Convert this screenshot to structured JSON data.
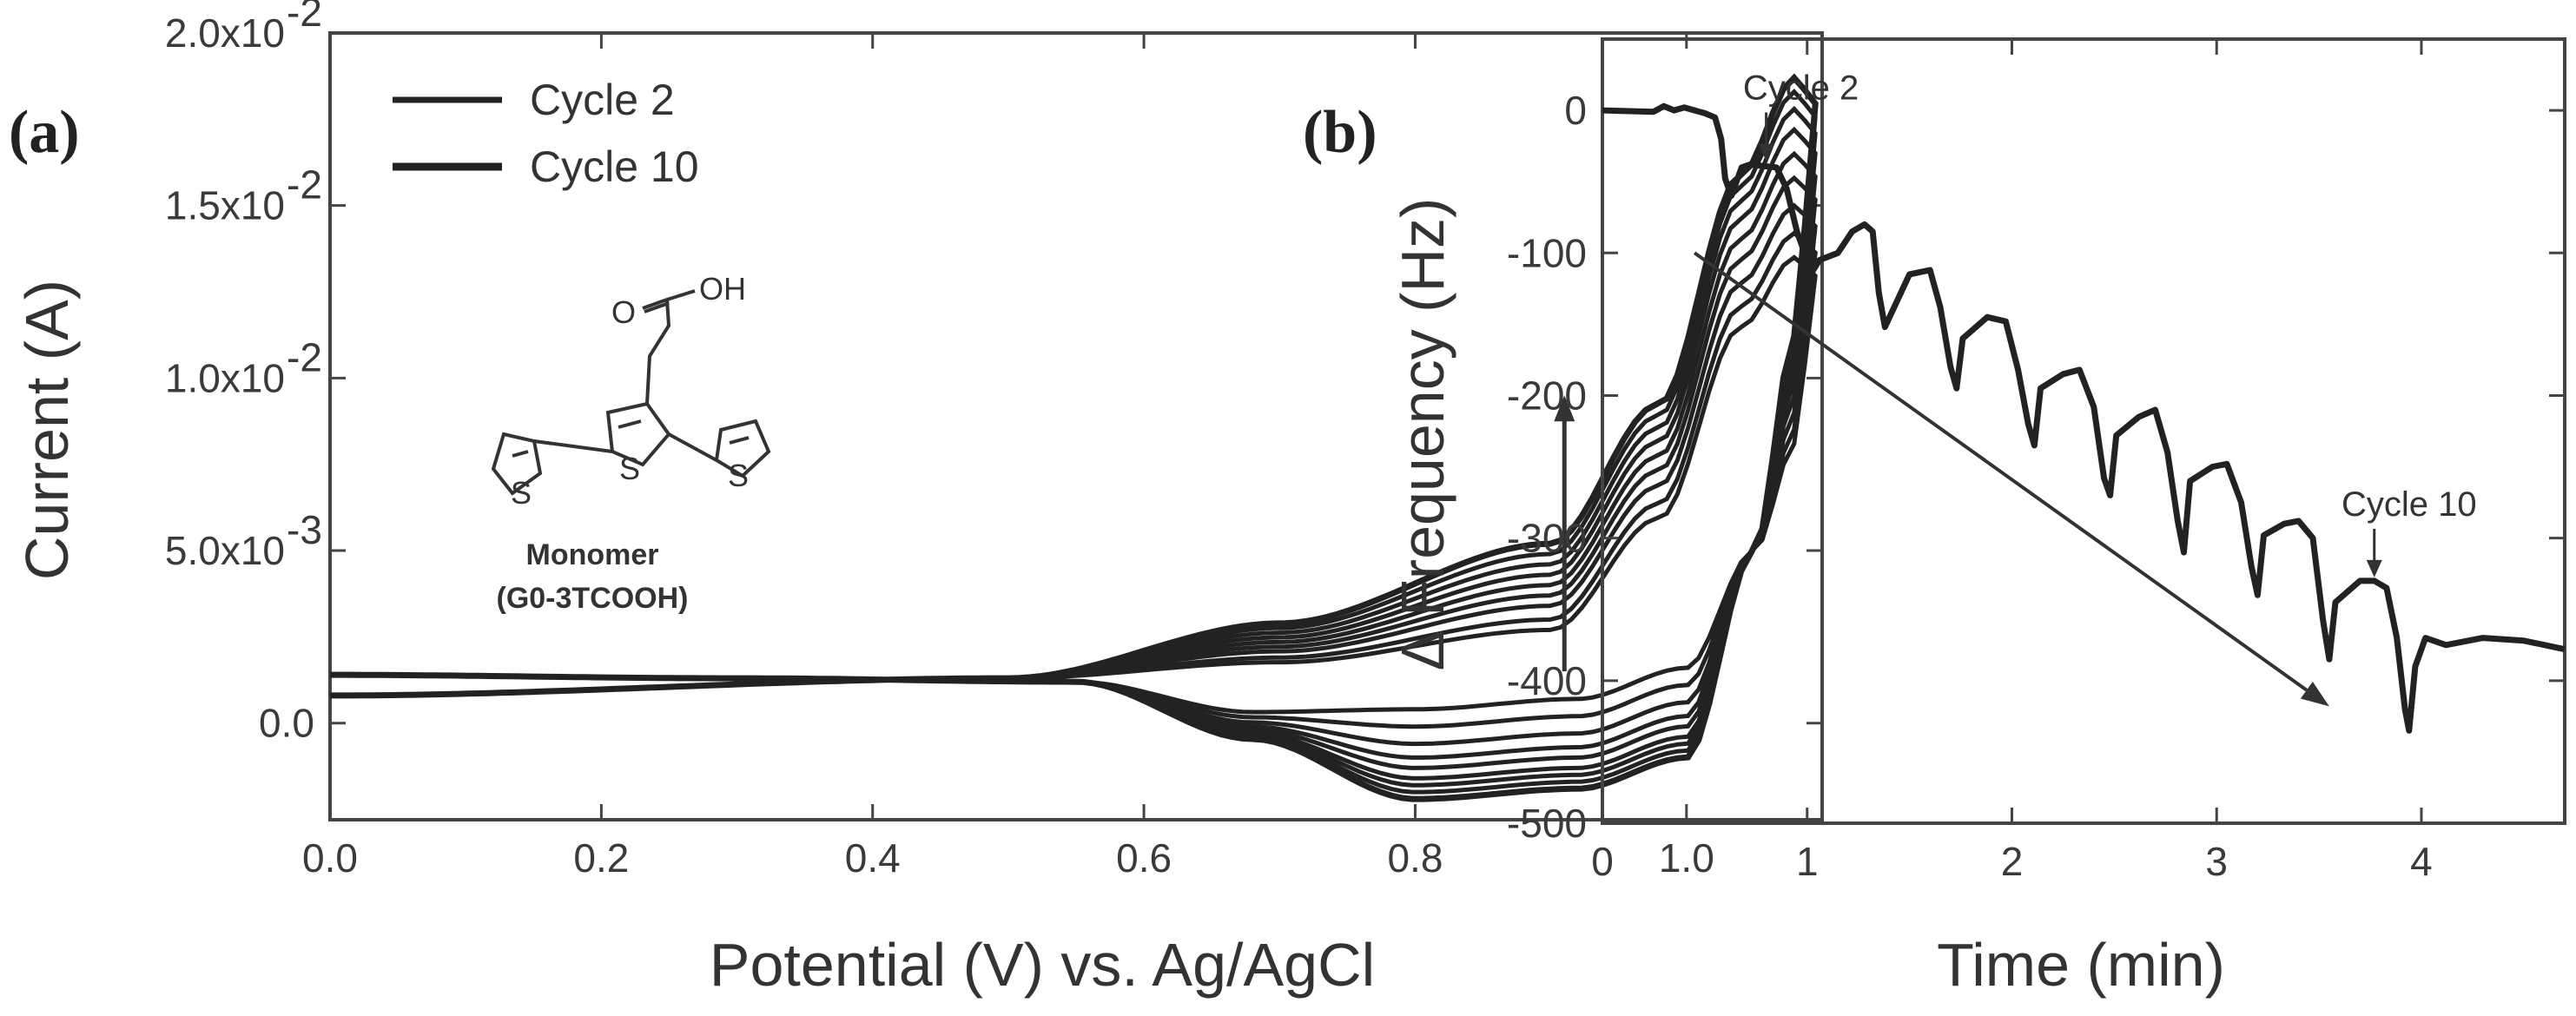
{
  "colors": {
    "ink": "#222222",
    "axis": "#444444",
    "text": "#333333"
  },
  "chart_data": [
    {
      "type": "line",
      "panel_label": "(a)",
      "title": "",
      "xlabel": "Potential (V) vs. Ag/AgCl",
      "ylabel": "Current (A)",
      "xlim": [
        0.0,
        1.1
      ],
      "ylim": [
        -0.0028,
        0.02
      ],
      "x_ticks": [
        0.0,
        0.2,
        0.4,
        0.6,
        0.8,
        1.0
      ],
      "x_tick_labels": [
        "0.0",
        "0.2",
        "0.4",
        "0.6",
        "0.8",
        "1.0"
      ],
      "y_ticks": [
        0.0,
        0.005,
        0.01,
        0.015,
        0.02
      ],
      "y_tick_labels": [
        "0.0",
        "5.0x10",
        "1.0x10",
        "1.5x10",
        "2.0x10"
      ],
      "y_tick_exponents": [
        "",
        "-3",
        "-2",
        "-2",
        "-2"
      ],
      "legend": {
        "position": "top-left",
        "entries": [
          "Cycle 2",
          "Cycle 10"
        ]
      },
      "arrow": {
        "x": 0.91,
        "from_y": 0.0015,
        "to_y": 0.0095,
        "direction": "up"
      },
      "cycles": [
        2,
        3,
        4,
        5,
        6,
        7,
        8,
        9,
        10
      ],
      "baseline_current": 0.001,
      "shoulder_current_at_0_9V": [
        0.0027,
        0.003,
        0.0034,
        0.0037,
        0.004,
        0.0043,
        0.0046,
        0.0049,
        0.0052
      ],
      "return_dip_current_at_0_8V": [
        0.0004,
        -0.0001,
        -0.0006,
        -0.001,
        -0.0013,
        -0.0016,
        -0.0018,
        -0.002,
        -0.0022
      ],
      "peak_current_at_1_08V": [
        0.0135,
        0.0142,
        0.015,
        0.0158,
        0.0165,
        0.0172,
        0.0178,
        0.0183,
        0.0187
      ],
      "monomer": {
        "name": "Monomer",
        "code": "(G0-3TCOOH)",
        "carbonyl_o": "O",
        "hydroxyl": "OH",
        "sulfur": "S"
      }
    },
    {
      "type": "line",
      "panel_label": "(b)",
      "title": "",
      "xlabel": "Time (min)",
      "ylabel": "Δ Frequency (Hz)",
      "xlim": [
        0,
        4.7
      ],
      "ylim": [
        -500,
        50
      ],
      "x_ticks": [
        0,
        1,
        2,
        3,
        4
      ],
      "x_tick_labels": [
        "0",
        "1",
        "2",
        "3",
        "4"
      ],
      "y_ticks": [
        0,
        -100,
        -200,
        -300,
        -400,
        -500
      ],
      "y_tick_labels": [
        "0",
        "-100",
        "-200",
        "-300",
        "-400",
        "-500"
      ],
      "annotations": [
        {
          "text": "Cycle 2",
          "x": 0.8,
          "y": -38
        },
        {
          "text": "Cycle 10",
          "x": 3.77,
          "y": -330
        }
      ],
      "trend_arrow": {
        "from": [
          0.45,
          -100
        ],
        "to": [
          3.55,
          -418
        ]
      },
      "series": [
        {
          "name": "Δ Frequency",
          "x": [
            0,
            0.25,
            0.3,
            0.35,
            0.4,
            0.45,
            0.5,
            0.55,
            0.58,
            0.6,
            0.63,
            0.65,
            0.68,
            0.72,
            0.85,
            0.9,
            0.95,
            1.0,
            1.03,
            1.06,
            1.15,
            1.22,
            1.28,
            1.32,
            1.35,
            1.38,
            1.5,
            1.6,
            1.65,
            1.7,
            1.73,
            1.76,
            1.88,
            1.97,
            2.03,
            2.08,
            2.11,
            2.14,
            2.25,
            2.33,
            2.4,
            2.45,
            2.48,
            2.51,
            2.62,
            2.7,
            2.76,
            2.81,
            2.84,
            2.87,
            2.98,
            3.05,
            3.12,
            3.17,
            3.2,
            3.23,
            3.33,
            3.4,
            3.47,
            3.52,
            3.55,
            3.58,
            3.7,
            3.77,
            3.83,
            3.88,
            3.92,
            3.94,
            3.97,
            4.02,
            4.12,
            4.3,
            4.5,
            4.7
          ],
          "y": [
            0,
            -1,
            3,
            0,
            2,
            0,
            -2,
            -5,
            -20,
            -48,
            -60,
            -52,
            -40,
            -38,
            -40,
            -55,
            -85,
            -105,
            -112,
            -105,
            -100,
            -85,
            -80,
            -85,
            -128,
            -152,
            -115,
            -112,
            -138,
            -180,
            -195,
            -160,
            -145,
            -148,
            -182,
            -220,
            -235,
            -195,
            -185,
            -182,
            -208,
            -258,
            -270,
            -228,
            -215,
            -210,
            -240,
            -288,
            -310,
            -260,
            -250,
            -248,
            -275,
            -320,
            -340,
            -298,
            -290,
            -288,
            -300,
            -358,
            -385,
            -345,
            -330,
            -330,
            -335,
            -370,
            -420,
            -435,
            -390,
            -370,
            -375,
            -370,
            -372,
            -378
          ]
        }
      ]
    }
  ]
}
